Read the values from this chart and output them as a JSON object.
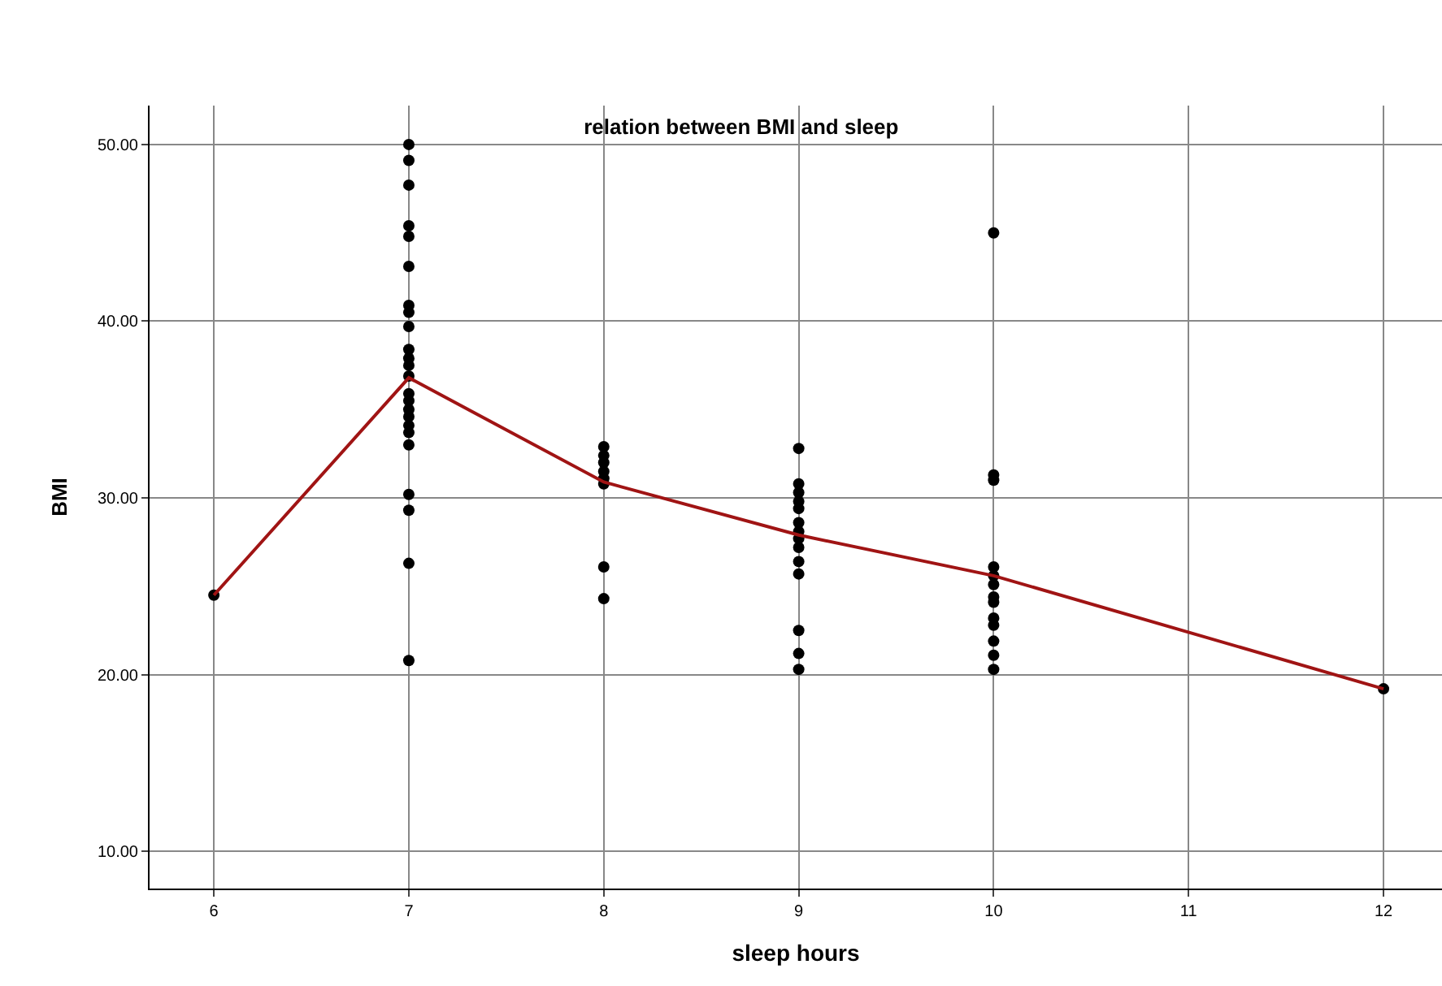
{
  "chart_data": {
    "type": "scatter",
    "title": "relation between BMI and sleep",
    "xlabel": "sleep hours",
    "ylabel": "BMI",
    "xlim": [
      5.67,
      12.3
    ],
    "xticks": [
      6,
      7,
      8,
      9,
      10,
      11,
      12
    ],
    "ylim": [
      7.9,
      52.2
    ],
    "yticks": [
      {
        "value": 10,
        "label": "10.00"
      },
      {
        "value": 20,
        "label": "20.00"
      },
      {
        "value": 30,
        "label": "30.00"
      },
      {
        "value": 40,
        "label": "40.00"
      },
      {
        "value": 50,
        "label": "50.00"
      }
    ],
    "grid": true,
    "legend": false,
    "marker": "circle",
    "series": [
      {
        "color": "#000000",
        "x": [
          6,
          7,
          7,
          7,
          7,
          7,
          7,
          7,
          7,
          7,
          7,
          7,
          7,
          7,
          7,
          7,
          7,
          7,
          7,
          7,
          7,
          7,
          7,
          7,
          7,
          8,
          8,
          8,
          8,
          8,
          8,
          8,
          8,
          9,
          9,
          9,
          9,
          9,
          9,
          9,
          9,
          9,
          9,
          9,
          9,
          9,
          9,
          10,
          10,
          10,
          10,
          10,
          10,
          10,
          10,
          10,
          10,
          10,
          10,
          10,
          12
        ],
        "values": [
          24.5,
          50.0,
          49.1,
          47.7,
          45.4,
          44.8,
          43.1,
          40.9,
          40.5,
          39.7,
          38.4,
          37.9,
          37.5,
          36.9,
          35.9,
          35.5,
          35.0,
          34.6,
          34.1,
          33.7,
          33.0,
          30.2,
          29.3,
          26.3,
          20.8,
          32.9,
          32.4,
          32.0,
          31.5,
          31.1,
          30.8,
          26.1,
          24.3,
          32.8,
          30.8,
          30.3,
          29.8,
          29.4,
          28.6,
          28.1,
          27.7,
          27.2,
          26.4,
          25.7,
          22.5,
          21.2,
          20.3,
          45.0,
          31.3,
          31.0,
          26.1,
          25.6,
          25.1,
          24.4,
          24.1,
          23.2,
          22.8,
          21.9,
          21.1,
          20.3,
          19.2
        ]
      },
      {
        "type": "line",
        "color": "#a01414",
        "marker": "none",
        "x": [
          6,
          7,
          8,
          9,
          10,
          12
        ],
        "values": [
          24.5,
          36.8,
          30.9,
          27.9,
          25.6,
          19.2
        ]
      }
    ]
  }
}
